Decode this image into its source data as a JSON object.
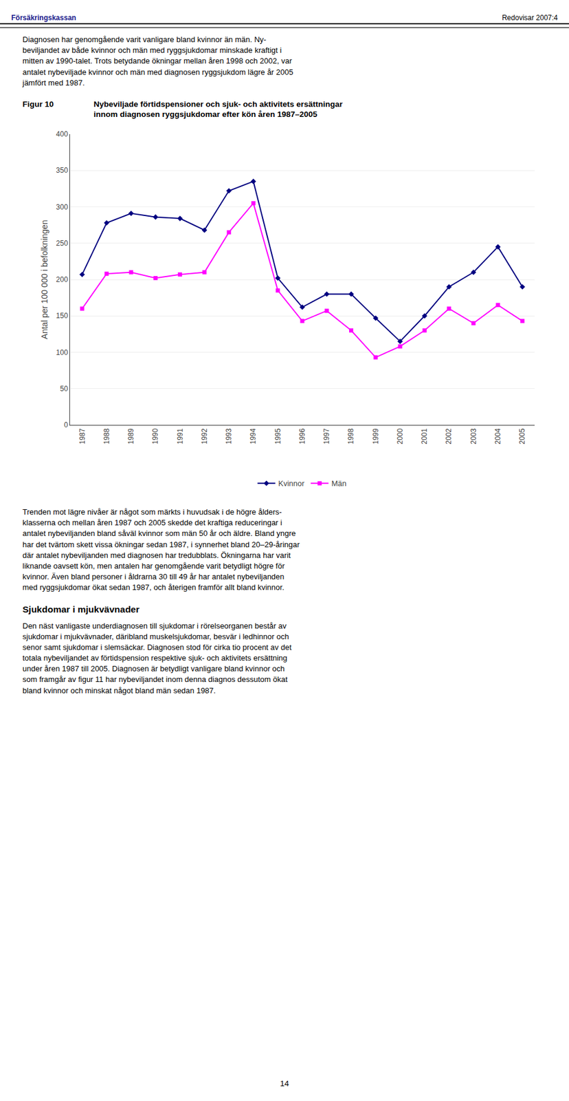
{
  "header_left": "Försäkringskassan",
  "header_right": "Redovisar 2007:4",
  "body_text_top": "Diagnosen har genomgående varit vanligare bland kvinnor än män. Ny-\nbeviljandet av både kvinnor och män med ryggsjukdomar minskade kraftigt i\nmitten av 1990-talet. Trots betydande ökningar mellan åren 1998 och 2002, var\nantalet nybeviljade kvinnor och män med diagnosen ryggsjukdom lägre år 2005\njämfört med 1987.",
  "body_text_bottom": "Trenden mot lägre nivåer är något som märkts i huvudsak i de högre ålders-\nklasserna och mellan åren 1987 och 2005 skedde det kraftiga reduceringar i\nantalet nybeviljanden bland såväl kvinnor som män 50 år och äldre. Bland yngre\nhar det tvärtom skett vissa ökningar sedan 1987, i synnerhet bland 20–29-åringar\ndär antalet nybeviljanden med diagnosen har tredubblats. Ökningarna har varit\nliknande oavsett kön, men antalen har genomgående varit betydligt högre för\nkvinnor. Även bland personer i åldrarna 30 till 49 år har antalet nybeviljanden\nmed ryggsjukdomar ökat sedan 1987, och återigen framför allt bland kvinnor.",
  "section_title": "Sjukdomar i mjukvävnader",
  "body_text_section": "Den näst vanligaste underdiagnosen till sjukdomar i rörelseorganen består av\nsjukdomar i mjukvävnader, däribland muskelsjukdomar, besvär i ledhinnor och\nsenor samt sjukdomar i slemsäckar. Diagnosen stod för cirka tio procent av det\ntotala nybeviljandet av förtidspension respektive sjuk- och aktivitets ersättning\nunder åren 1987 till 2005. Diagnosen är betydligt vanligare bland kvinnor och\nsom framgår av figur 11 har nybeviljandet inom denna diagnos dessutom ökat\nbland kvinnor och minskat något bland män sedan 1987.",
  "footer": "14",
  "chart_data": {
    "type": "line",
    "label": "Figur 10",
    "title": "Nybeviljade förtidspensioner och sjuk- och aktivitets ersättningar\ninnom diagnosen ryggsjukdomar efter kön åren 1987–2005",
    "ylabel": "Antal per 100 000 i befolkningen",
    "x": [
      1987,
      1988,
      1989,
      1990,
      1991,
      1992,
      1993,
      1994,
      1995,
      1996,
      1997,
      1998,
      1999,
      2000,
      2001,
      2002,
      2003,
      2004,
      2005
    ],
    "xlim": [
      1986.5,
      2005.5
    ],
    "xticks": [
      1987,
      1988,
      1989,
      1990,
      1991,
      1992,
      1993,
      1994,
      1995,
      1996,
      1997,
      1998,
      1999,
      2000,
      2001,
      2002,
      2003,
      2004,
      2005
    ],
    "ylim": [
      0,
      400
    ],
    "yticks": [
      0,
      50,
      100,
      150,
      200,
      250,
      300,
      350,
      400
    ],
    "grid": true,
    "legend": "bottom",
    "series": [
      {
        "name": "Kvinnor",
        "color": "#000080",
        "marker": "diamond",
        "values": [
          207,
          278,
          291,
          286,
          284,
          268,
          322,
          335,
          202,
          162,
          180,
          180,
          147,
          115,
          150,
          190,
          210,
          245,
          190
        ]
      },
      {
        "name": "Män",
        "color": "#FF00FF",
        "marker": "square",
        "values": [
          160,
          208,
          210,
          202,
          207,
          210,
          265,
          305,
          185,
          143,
          157,
          130,
          93,
          108,
          130,
          160,
          140,
          165,
          143
        ]
      }
    ]
  }
}
